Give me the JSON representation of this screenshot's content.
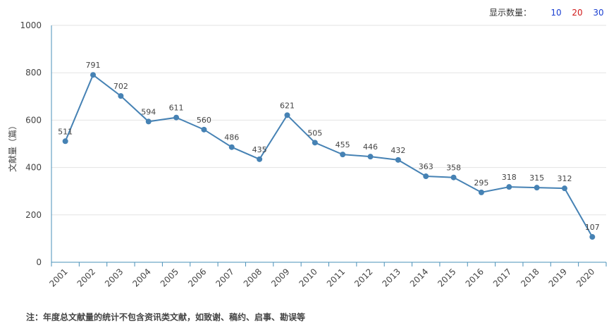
{
  "display_count": {
    "label": "显示数量：",
    "options": [
      {
        "label": "10",
        "color": "#1a3fd1"
      },
      {
        "label": "20",
        "color": "#d11a1a"
      },
      {
        "label": "30",
        "color": "#1a3fd1"
      }
    ]
  },
  "note": "注：年度总文献量的统计不包含资讯类文献，如致谢、稿约、启事、勘误等",
  "chart_data": {
    "type": "line",
    "title": "",
    "xlabel": "",
    "ylabel": "文献量（篇）",
    "ylim": [
      0,
      1000
    ],
    "yticks": [
      0,
      200,
      400,
      600,
      800,
      1000
    ],
    "grid": true,
    "color": "#4682b4",
    "x": [
      "2001",
      "2002",
      "2003",
      "2004",
      "2005",
      "2006",
      "2007",
      "2008",
      "2009",
      "2010",
      "2011",
      "2012",
      "2013",
      "2014",
      "2015",
      "2016",
      "2017",
      "2018",
      "2019",
      "2020"
    ],
    "values": [
      511,
      791,
      702,
      594,
      611,
      560,
      486,
      435,
      621,
      505,
      455,
      446,
      432,
      363,
      358,
      295,
      318,
      315,
      312,
      107
    ]
  }
}
